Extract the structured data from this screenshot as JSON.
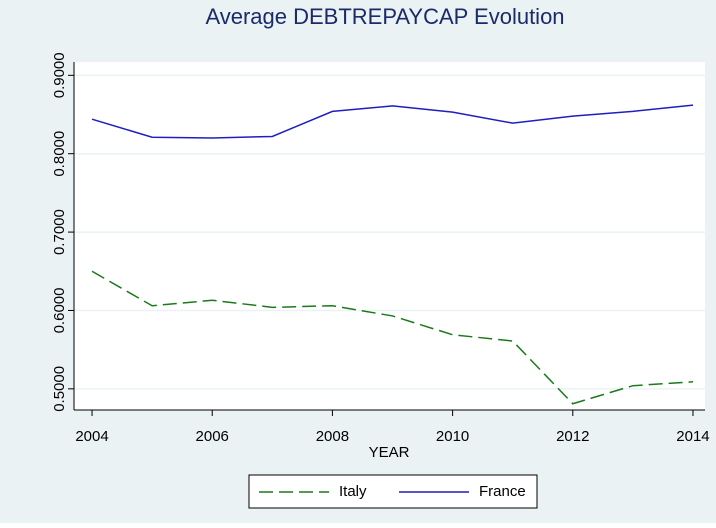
{
  "chart_data": {
    "type": "line",
    "title": "Average DEBTREPAYCAP Evolution",
    "x_label": "YEAR",
    "x": [
      2004,
      2005,
      2006,
      2007,
      2008,
      2009,
      2010,
      2011,
      2012,
      2013,
      2014
    ],
    "series": [
      {
        "name": "Italy",
        "color": "#1a7a1a",
        "dash": true,
        "values": [
          0.65,
          0.606,
          0.613,
          0.604,
          0.606,
          0.593,
          0.569,
          0.561,
          0.481,
          0.504,
          0.509
        ]
      },
      {
        "name": "France",
        "color": "#1f1fbf",
        "dash": false,
        "values": [
          0.844,
          0.821,
          0.82,
          0.822,
          0.854,
          0.861,
          0.853,
          0.839,
          0.848,
          0.854,
          0.862
        ]
      }
    ],
    "xlim": [
      2003.7,
      2014.2
    ],
    "xticks": [
      2004,
      2006,
      2008,
      2010,
      2012,
      2014
    ],
    "ylim": [
      0.473,
      0.917
    ],
    "yticks": [
      {
        "value": 0.5,
        "label": "0.5000"
      },
      {
        "value": 0.6,
        "label": "0.6000"
      },
      {
        "value": 0.7,
        "label": "0.7000"
      },
      {
        "value": 0.8,
        "label": "0.8000"
      },
      {
        "value": 0.9,
        "label": "0.9000"
      }
    ],
    "grid": true,
    "legend": "bottom"
  }
}
